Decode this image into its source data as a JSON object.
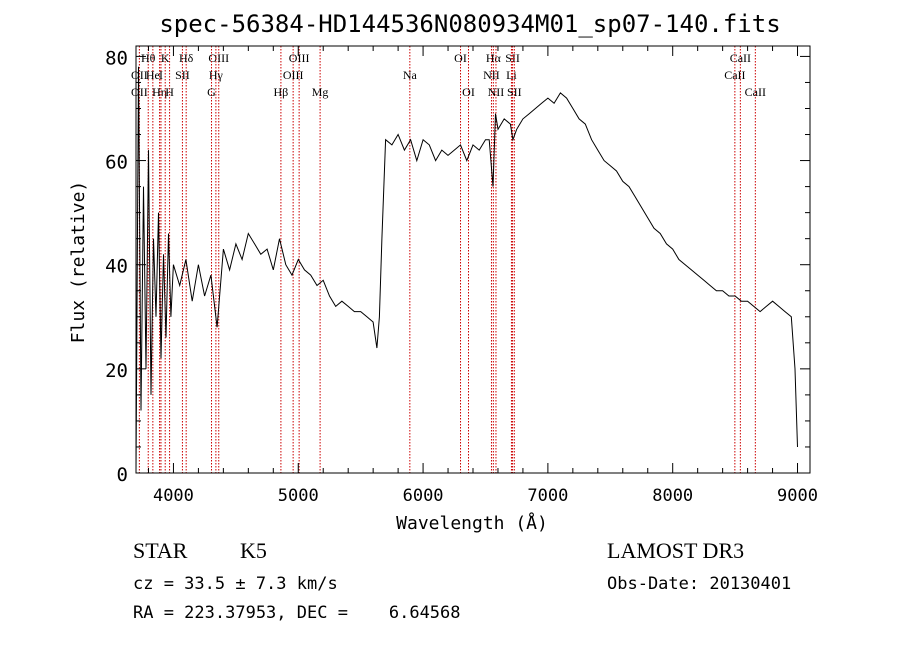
{
  "chart_data": {
    "type": "line",
    "title": "spec-56384-HD144536N080934M01_sp07-140.fits",
    "xlabel": "Wavelength (Å)",
    "ylabel": "Flux (relative)",
    "xlim": [
      3700,
      9100
    ],
    "ylim": [
      0,
      82
    ],
    "xticks": [
      4000,
      5000,
      6000,
      7000,
      8000,
      9000
    ],
    "yticks": [
      0,
      20,
      40,
      60,
      80
    ],
    "grid": false,
    "series": [
      {
        "name": "spectrum",
        "color": "#000000",
        "x": [
          3700,
          3720,
          3740,
          3760,
          3780,
          3800,
          3820,
          3840,
          3860,
          3880,
          3900,
          3920,
          3940,
          3960,
          3980,
          4000,
          4050,
          4100,
          4150,
          4200,
          4250,
          4300,
          4350,
          4400,
          4450,
          4500,
          4550,
          4600,
          4650,
          4700,
          4750,
          4800,
          4850,
          4900,
          4950,
          5000,
          5050,
          5100,
          5150,
          5200,
          5250,
          5300,
          5350,
          5400,
          5450,
          5500,
          5550,
          5600,
          5630,
          5650,
          5670,
          5700,
          5750,
          5800,
          5850,
          5900,
          5950,
          6000,
          6050,
          6100,
          6150,
          6200,
          6250,
          6300,
          6350,
          6400,
          6450,
          6500,
          6530,
          6560,
          6580,
          6600,
          6650,
          6700,
          6720,
          6750,
          6800,
          6850,
          6900,
          6950,
          7000,
          7050,
          7100,
          7150,
          7200,
          7250,
          7300,
          7350,
          7400,
          7450,
          7500,
          7550,
          7600,
          7650,
          7700,
          7750,
          7800,
          7850,
          7900,
          7950,
          8000,
          8050,
          8100,
          8150,
          8200,
          8250,
          8300,
          8350,
          8400,
          8450,
          8500,
          8550,
          8600,
          8650,
          8700,
          8750,
          8800,
          8850,
          8900,
          8950,
          8980,
          9000
        ],
        "y": [
          0,
          78,
          12,
          55,
          20,
          62,
          15,
          45,
          30,
          50,
          22,
          42,
          26,
          46,
          30,
          40,
          36,
          41,
          33,
          40,
          34,
          38,
          28,
          43,
          39,
          44,
          41,
          46,
          44,
          42,
          43,
          39,
          45,
          40,
          38,
          41,
          39,
          38,
          36,
          37,
          34,
          32,
          33,
          32,
          31,
          31,
          30,
          29,
          24,
          30,
          45,
          64,
          63,
          65,
          62,
          64,
          60,
          64,
          63,
          60,
          62,
          61,
          62,
          63,
          60,
          63,
          62,
          64,
          64,
          55,
          69,
          66,
          68,
          67,
          64,
          66,
          68,
          69,
          70,
          71,
          72,
          71,
          73,
          72,
          70,
          68,
          67,
          64,
          62,
          60,
          59,
          58,
          56,
          55,
          53,
          51,
          49,
          47,
          46,
          44,
          43,
          41,
          40,
          39,
          38,
          37,
          36,
          35,
          35,
          34,
          34,
          33,
          33,
          32,
          31,
          32,
          33,
          32,
          31,
          30,
          20,
          5
        ]
      }
    ],
    "lines": [
      {
        "name": "OII",
        "wavelength": 3727,
        "row": 3
      },
      {
        "name": "Hθ",
        "wavelength": 3798,
        "row": 1
      },
      {
        "name": "OII",
        "wavelength": 3727,
        "row": 2
      },
      {
        "name": "He",
        "wavelength": 3835,
        "row": 2
      },
      {
        "name": "Hη",
        "wavelength": 3889,
        "row": 3
      },
      {
        "name": "K",
        "wavelength": 3934,
        "row": 1
      },
      {
        "name": "I",
        "wavelength": 3900,
        "row": 2
      },
      {
        "name": "H",
        "wavelength": 3969,
        "row": 3
      },
      {
        "name": "SII",
        "wavelength": 4072,
        "row": 2
      },
      {
        "name": "Hδ",
        "wavelength": 4102,
        "row": 1
      },
      {
        "name": "OIII",
        "wavelength": 4363,
        "row": 1
      },
      {
        "name": "Hγ",
        "wavelength": 4340,
        "row": 2
      },
      {
        "name": "G",
        "wavelength": 4305,
        "row": 3
      },
      {
        "name": "Hβ",
        "wavelength": 4861,
        "row": 3
      },
      {
        "name": "OIII",
        "wavelength": 4959,
        "row": 2
      },
      {
        "name": "OIII",
        "wavelength": 5007,
        "row": 1
      },
      {
        "name": "Mg",
        "wavelength": 5175,
        "row": 3
      },
      {
        "name": "Na",
        "wavelength": 5894,
        "row": 2
      },
      {
        "name": "OI",
        "wavelength": 6300,
        "row": 1
      },
      {
        "name": "OI",
        "wavelength": 6364,
        "row": 3
      },
      {
        "name": "Hα",
        "wavelength": 6563,
        "row": 1
      },
      {
        "name": "NII",
        "wavelength": 6548,
        "row": 2
      },
      {
        "name": "NII",
        "wavelength": 6584,
        "row": 3
      },
      {
        "name": "SII",
        "wavelength": 6717,
        "row": 1
      },
      {
        "name": "Li",
        "wavelength": 6708,
        "row": 2
      },
      {
        "name": "SII",
        "wavelength": 6731,
        "row": 3
      },
      {
        "name": "CaII",
        "wavelength": 8542,
        "row": 1
      },
      {
        "name": "CaII",
        "wavelength": 8498,
        "row": 2
      },
      {
        "name": "CaII",
        "wavelength": 8662,
        "row": 3
      }
    ]
  },
  "info": {
    "object_class": "STAR",
    "subclass": "K5",
    "cz_line": "cz = 33.5 ± 7.3 km/s",
    "coord_line": "RA = 223.37953, DEC =    6.64568",
    "survey": "LAMOST DR3",
    "obs_date": "Obs-Date: 20130401"
  },
  "colors": {
    "line_marker": "#cc0000",
    "spectrum": "#000000"
  }
}
